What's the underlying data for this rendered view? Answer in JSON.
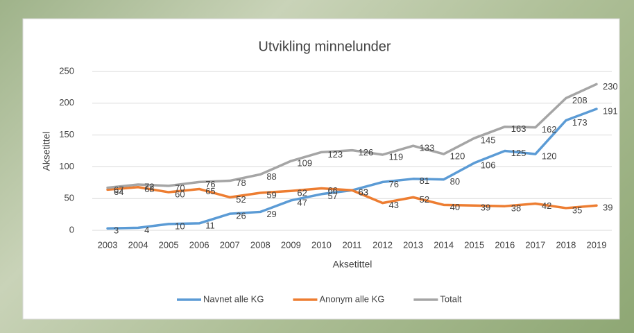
{
  "chart_data": {
    "type": "line",
    "title": "Utvikling minnelunder",
    "x_label": "Aksetittel",
    "y_label": "Aksetittel",
    "categories": [
      "2003",
      "2004",
      "2005",
      "2006",
      "2007",
      "2008",
      "2009",
      "2010",
      "2011",
      "2012",
      "2013",
      "2014",
      "2015",
      "2016",
      "2017",
      "2018",
      "2019"
    ],
    "series": [
      {
        "name": "Navnet alle KG",
        "color": "#5b9bd5",
        "values": [
          3,
          4,
          10,
          11,
          26,
          29,
          47,
          57,
          63,
          76,
          81,
          80,
          106,
          125,
          120,
          173,
          191
        ]
      },
      {
        "name": "Anonym alle KG",
        "color": "#ed7d31",
        "values": [
          64,
          68,
          60,
          65,
          52,
          59,
          62,
          66,
          63,
          43,
          52,
          40,
          39,
          38,
          42,
          35,
          39
        ]
      },
      {
        "name": "Totalt",
        "color": "#a5a5a5",
        "values": [
          67,
          72,
          70,
          76,
          78,
          88,
          109,
          123,
          126,
          119,
          133,
          120,
          145,
          163,
          162,
          208,
          230
        ]
      }
    ],
    "ylim": [
      0,
      250
    ],
    "yticks": [
      0,
      50,
      100,
      150,
      200,
      250
    ],
    "grid": true,
    "legend": "bottom"
  }
}
